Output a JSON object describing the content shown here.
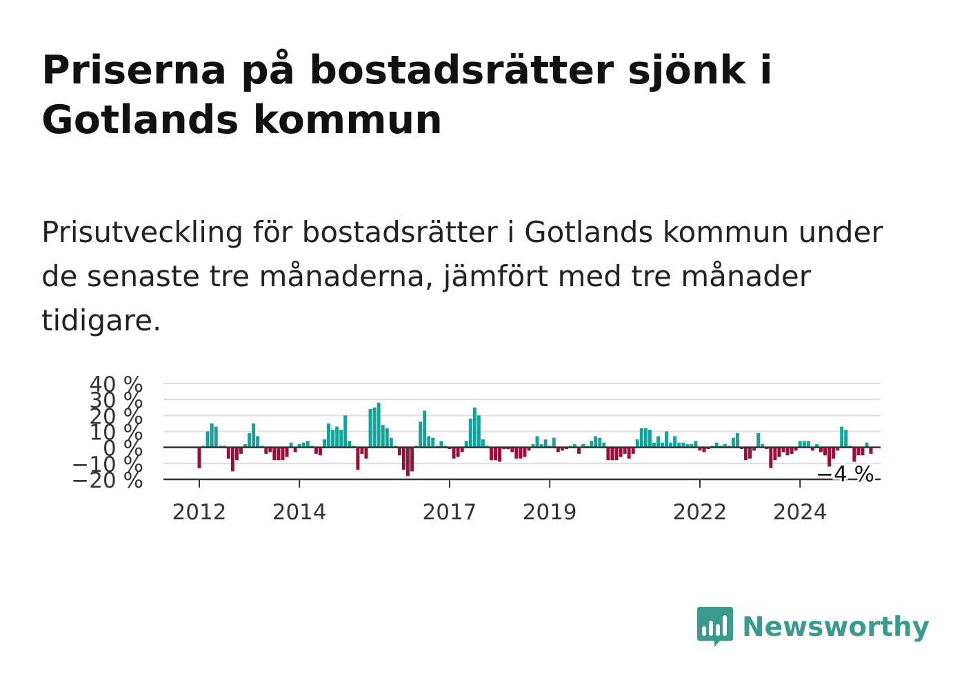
{
  "title": "Priserna på bostadsrätter sjönk i Gotlands kommun",
  "subtitle": "Prisutveckling för bostadsrätter i Gotlands kommun under de senaste tre månaderna, jämfört med tre månader tidigare.",
  "brand": {
    "name": "Newsworthy",
    "icon": "newsworthy-logo-icon"
  },
  "colors": {
    "positive": "#15a299",
    "negative": "#9c0d3f",
    "grid": "#dddddd",
    "axis": "#333333"
  },
  "chart_data": {
    "type": "bar",
    "ylabel": "",
    "xlabel": "",
    "ylim": [
      -20,
      40
    ],
    "yticks": [
      "40 %",
      "30 %",
      "20 %",
      "10 %",
      "0 %",
      "−10 %",
      "−20 %"
    ],
    "ytick_values": [
      40,
      30,
      20,
      10,
      0,
      -10,
      -20
    ],
    "xticks": [
      "2012",
      "2014",
      "2017",
      "2019",
      "2022",
      "2024"
    ],
    "grid": true,
    "annotation": "−4 %",
    "start_month": "2012-01",
    "values": [
      -13,
      1,
      10,
      15,
      13,
      1,
      1,
      -7,
      -15,
      -8,
      -4,
      2,
      9,
      15,
      7,
      1,
      -4,
      -3,
      -8,
      -8,
      -8,
      -6,
      3,
      -3,
      2,
      3,
      4,
      1,
      -4,
      -5,
      5,
      15,
      11,
      13,
      11,
      20,
      4,
      1,
      -14,
      -4,
      -7,
      24,
      25,
      28,
      14,
      12,
      6,
      1,
      -5,
      -14,
      -18,
      -15,
      1,
      16,
      23,
      7,
      6,
      1,
      4,
      1,
      -1,
      -7,
      -6,
      -3,
      4,
      18,
      25,
      20,
      5,
      1,
      -8,
      -8,
      -9,
      -1,
      -1,
      -3,
      -7,
      -7,
      -6,
      -2,
      2,
      7,
      2,
      5,
      1,
      6,
      -3,
      -2,
      -1,
      1,
      2,
      -4,
      2,
      1,
      4,
      7,
      6,
      3,
      -8,
      -8,
      -8,
      -6,
      -4,
      -7,
      -4,
      5,
      12,
      12,
      11,
      3,
      7,
      3,
      10,
      3,
      7,
      3,
      3,
      2,
      2,
      4,
      -2,
      -3,
      -1,
      1,
      3,
      1,
      2,
      1,
      6,
      9,
      -1,
      -8,
      -7,
      -2,
      9,
      2,
      -1,
      -13,
      -8,
      -6,
      -3,
      -5,
      -4,
      -2,
      4,
      4,
      4,
      -2,
      2,
      -3,
      -5,
      -12,
      -7,
      -2,
      13,
      11,
      1,
      -9,
      -5,
      -5,
      3,
      -4
    ]
  }
}
